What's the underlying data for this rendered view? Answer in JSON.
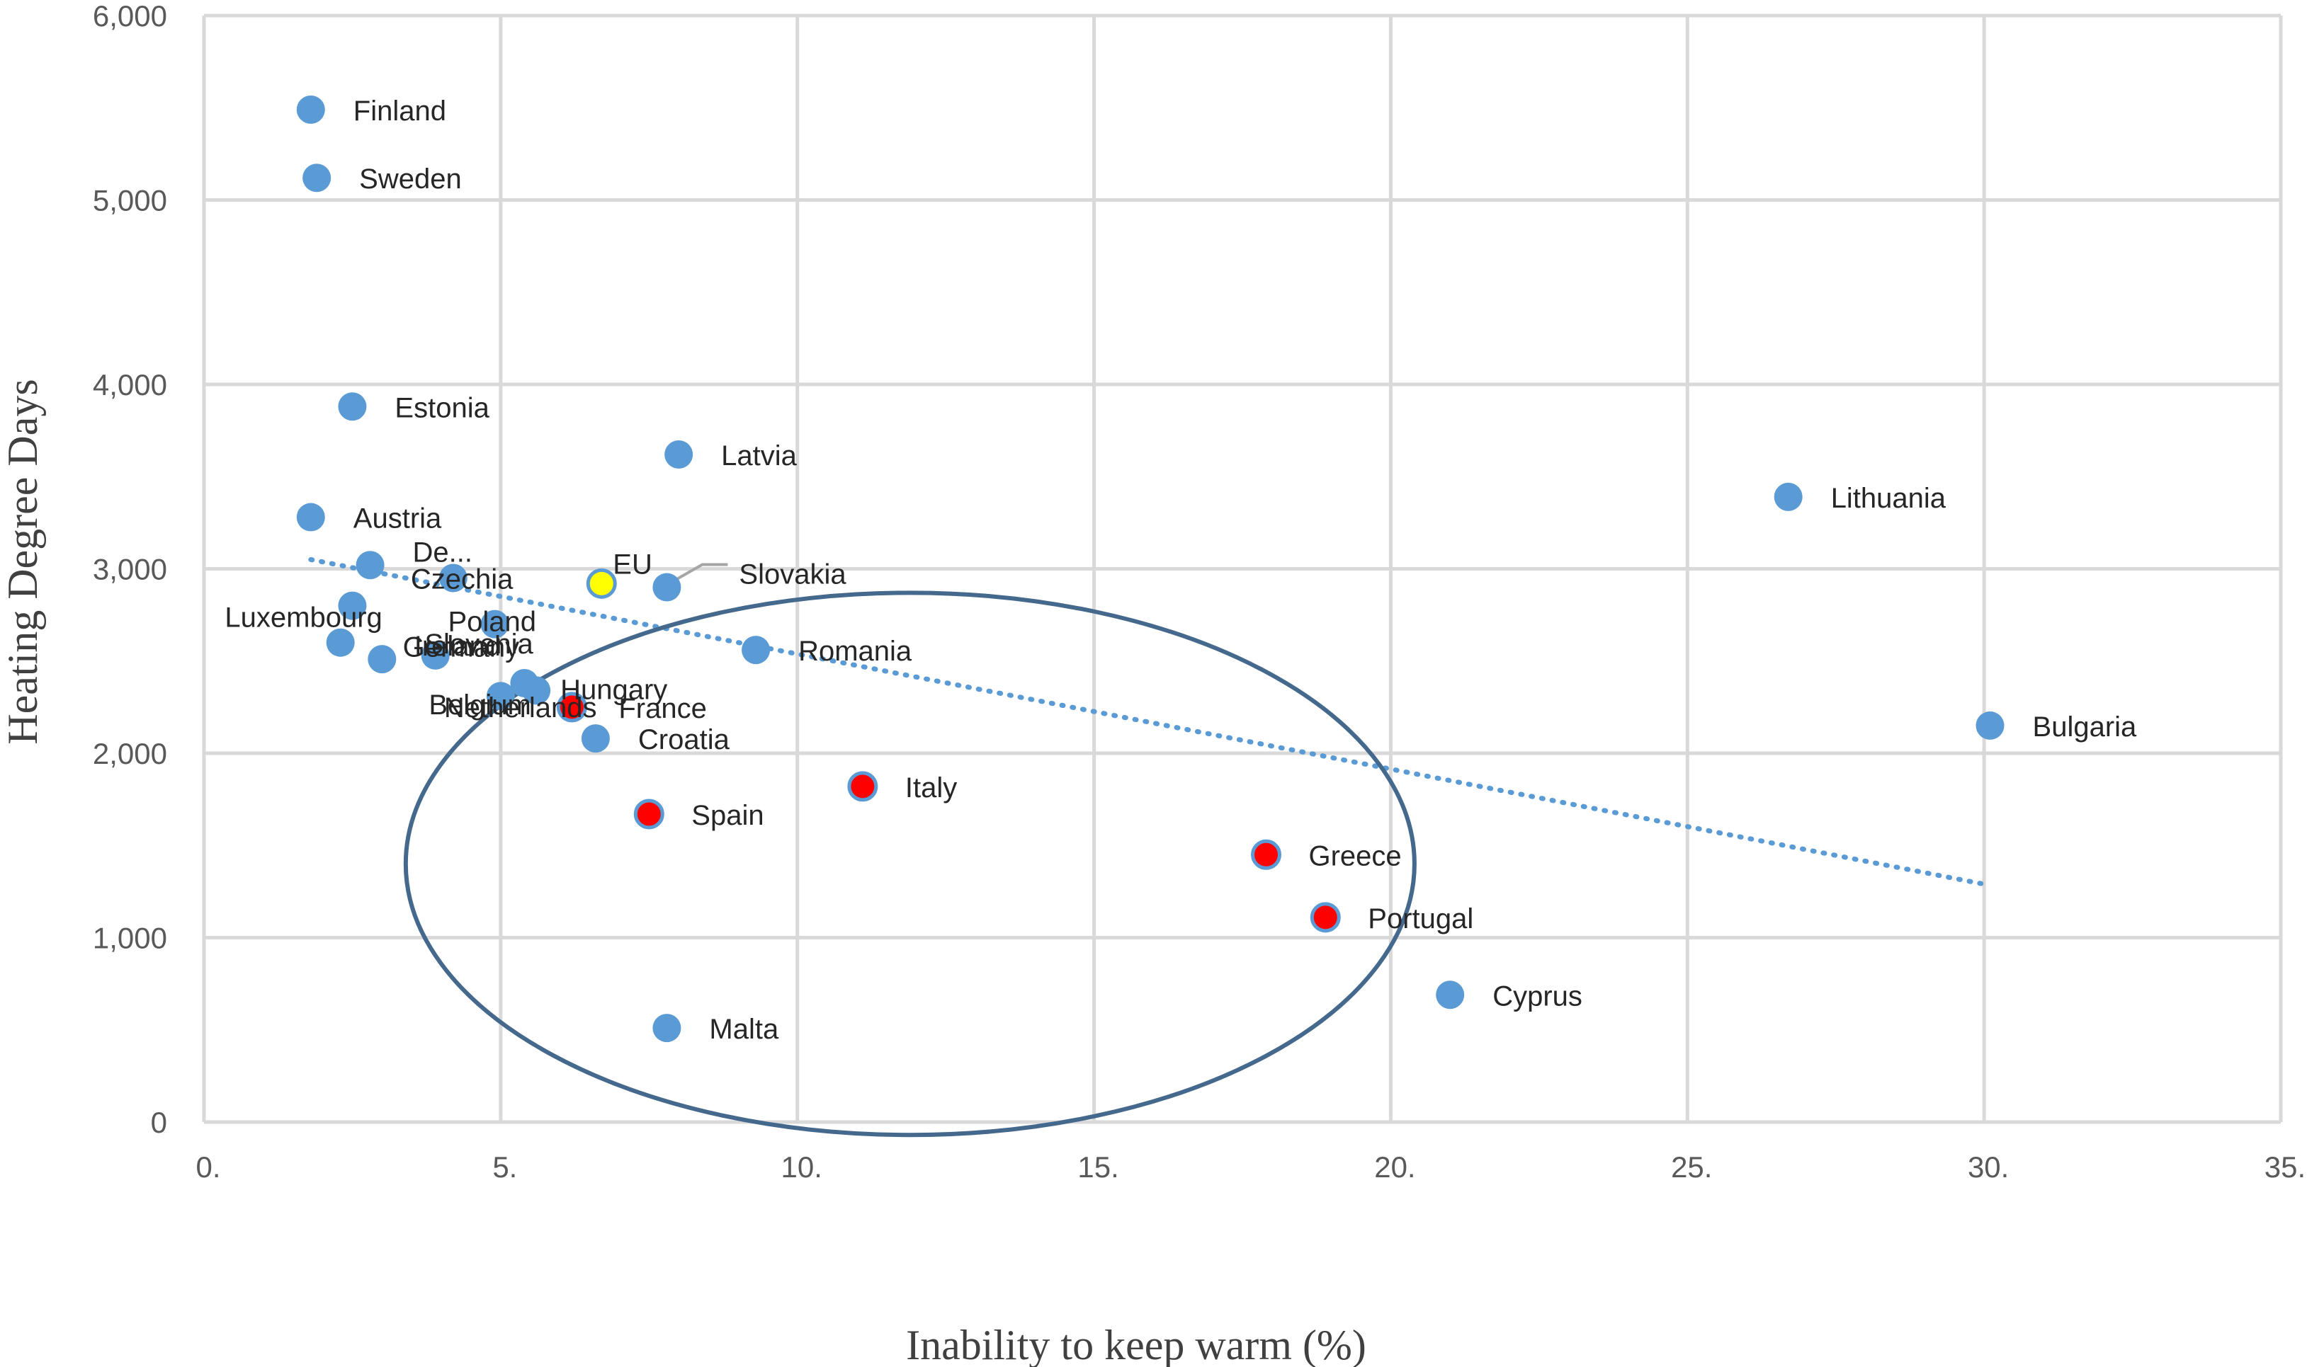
{
  "chart_data": {
    "type": "scatter",
    "title": "",
    "xlabel": "Inability to keep warm (%)",
    "ylabel": "Heating Degree Days",
    "xlim": [
      0,
      35
    ],
    "ylim": [
      0,
      6000
    ],
    "x_ticks": [
      {
        "value": 0,
        "label": "0."
      },
      {
        "value": 5,
        "label": "5."
      },
      {
        "value": 10,
        "label": "10."
      },
      {
        "value": 15,
        "label": "15."
      },
      {
        "value": 20,
        "label": "20."
      },
      {
        "value": 25,
        "label": "25."
      },
      {
        "value": 30,
        "label": "30."
      },
      {
        "value": 35,
        "label": "35."
      }
    ],
    "y_ticks": [
      {
        "value": 0,
        "label": "0"
      },
      {
        "value": 1000,
        "label": "1,000"
      },
      {
        "value": 2000,
        "label": "2,000"
      },
      {
        "value": 3000,
        "label": "3,000"
      },
      {
        "value": 4000,
        "label": "4,000"
      },
      {
        "value": 5000,
        "label": "5,000"
      },
      {
        "value": 6000,
        "label": "6,000"
      }
    ],
    "grid": true,
    "legend": "none",
    "colors": {
      "default_point": "#5b9bd5",
      "highlight_point": "#ff0000",
      "eu_point": "#ffff00",
      "trendline": "#5b9bd5",
      "ellipse": "#44698d"
    },
    "trendline": {
      "style": "dotted",
      "x": [
        1.8,
        30.0
      ],
      "y": [
        3050,
        1290
      ]
    },
    "ellipse": {
      "center": [
        11.9,
        1400
      ],
      "x_radius": 8.5,
      "y_radius": 1470
    },
    "points": [
      {
        "label": "Finland",
        "x": 1.8,
        "y": 5490,
        "color": "default"
      },
      {
        "label": "Sweden",
        "x": 1.9,
        "y": 5120,
        "color": "default"
      },
      {
        "label": "Estonia",
        "x": 2.5,
        "y": 3880,
        "color": "default"
      },
      {
        "label": "Latvia",
        "x": 8.0,
        "y": 3620,
        "color": "default"
      },
      {
        "label": "Lithuania",
        "x": 26.7,
        "y": 3390,
        "color": "default"
      },
      {
        "label": "Austria",
        "x": 1.8,
        "y": 3280,
        "color": "default"
      },
      {
        "label": "De...",
        "x": 2.8,
        "y": 3020,
        "color": "default"
      },
      {
        "label": "Czechia",
        "x": 4.2,
        "y": 2950,
        "color": "default"
      },
      {
        "label": "Poland",
        "x": 4.9,
        "y": 2700,
        "color": "default"
      },
      {
        "label": "EU",
        "x": 6.7,
        "y": 2920,
        "color": "eu"
      },
      {
        "label": "Slovakia",
        "x": 7.8,
        "y": 2900,
        "color": "default"
      },
      {
        "label": "Luxembourg",
        "x": 2.5,
        "y": 2800,
        "color": "default"
      },
      {
        "label": "Germany",
        "x": 2.3,
        "y": 2600,
        "color": "default"
      },
      {
        "label": "Slovenia",
        "x": 3.0,
        "y": 2510,
        "color": "default"
      },
      {
        "label": "Ireland",
        "x": 3.9,
        "y": 2530,
        "color": "default"
      },
      {
        "label": "Belgium",
        "x": 5.4,
        "y": 2380,
        "color": "default"
      },
      {
        "label": "Romania",
        "x": 9.3,
        "y": 2560,
        "color": "default"
      },
      {
        "label": "Netherlands",
        "x": 5.0,
        "y": 2310,
        "color": "default"
      },
      {
        "label": "Hungary",
        "x": 5.6,
        "y": 2340,
        "color": "default"
      },
      {
        "label": "France",
        "x": 6.2,
        "y": 2250,
        "color": "highlight"
      },
      {
        "label": "Croatia",
        "x": 6.6,
        "y": 2080,
        "color": "default"
      },
      {
        "label": "Bulgaria",
        "x": 30.1,
        "y": 2150,
        "color": "default"
      },
      {
        "label": "Italy",
        "x": 11.1,
        "y": 1820,
        "color": "highlight"
      },
      {
        "label": "Spain",
        "x": 7.5,
        "y": 1670,
        "color": "highlight"
      },
      {
        "label": "Greece",
        "x": 17.9,
        "y": 1450,
        "color": "highlight"
      },
      {
        "label": "Portugal",
        "x": 18.9,
        "y": 1110,
        "color": "highlight"
      },
      {
        "label": "Cyprus",
        "x": 21.0,
        "y": 690,
        "color": "default"
      },
      {
        "label": "Malta",
        "x": 7.8,
        "y": 510,
        "color": "default"
      }
    ]
  }
}
